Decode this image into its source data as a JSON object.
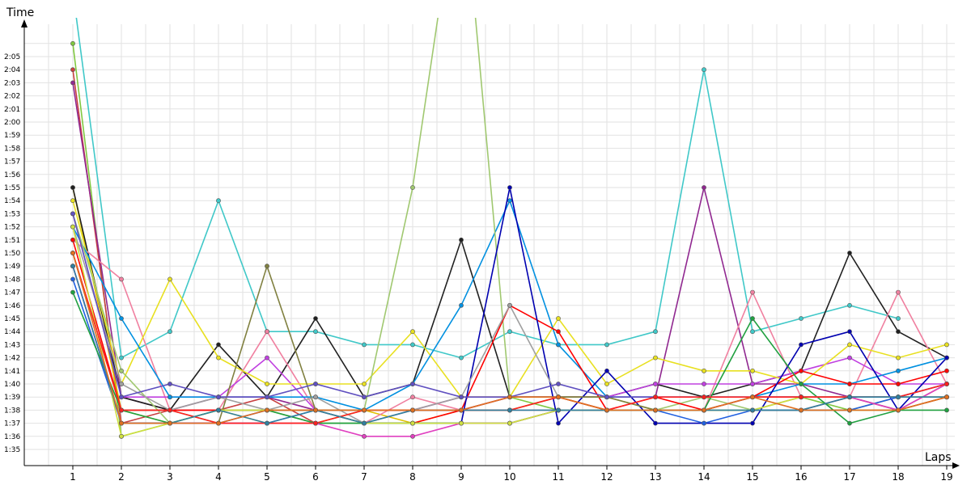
{
  "chart_data": {
    "type": "line",
    "title": "",
    "xlabel": "Laps",
    "ylabel": "Time",
    "grid": true,
    "x": [
      1,
      2,
      3,
      4,
      5,
      6,
      7,
      8,
      9,
      10,
      11,
      12,
      13,
      14,
      15,
      16,
      17,
      18,
      19
    ],
    "y_ticks": [
      "1:35",
      "1:36",
      "1:37",
      "1:38",
      "1:39",
      "1:40",
      "1:41",
      "1:42",
      "1:43",
      "1:44",
      "1:45",
      "1:46",
      "1:47",
      "1:48",
      "1:49",
      "1:50",
      "1:51",
      "1:52",
      "1:53",
      "1:54",
      "1:55",
      "1:56",
      "1:57",
      "1:58",
      "1:59",
      "2:00",
      "2:01",
      "2:02",
      "2:03",
      "2:04",
      "2:05"
    ],
    "ylim_seconds": [
      94,
      127
    ],
    "series": [
      {
        "color": "#40c8c8",
        "values": [
          130,
          102,
          104,
          114,
          104,
          104,
          103,
          103,
          102,
          104,
          103,
          103,
          104,
          124,
          104,
          105,
          106,
          105,
          null
        ]
      },
      {
        "color": "#80c840",
        "values": [
          126,
          96,
          97,
          98,
          98,
          97,
          97,
          98,
          98,
          99,
          98,
          98,
          98,
          98,
          99,
          99,
          98,
          98,
          99
        ]
      },
      {
        "color": "#c84040",
        "values": [
          124,
          97,
          98,
          98,
          99,
          97,
          98,
          98,
          98,
          99,
          99,
          98,
          98,
          98,
          98,
          98,
          99,
          98,
          99
        ]
      },
      {
        "color": "#902890",
        "values": [
          123,
          99,
          98,
          99,
          99,
          98,
          98,
          98,
          99,
          99,
          99,
          99,
          99,
          115,
          100,
          100,
          99,
          99,
          99
        ]
      },
      {
        "color": "#e0c000",
        "values": [
          115,
          98,
          97,
          98,
          97,
          97,
          98,
          97,
          98,
          98,
          99,
          99,
          98,
          98,
          98,
          98,
          98,
          99,
          99
        ]
      },
      {
        "color": "#202020",
        "values": [
          115,
          99,
          98,
          103,
          99,
          105,
          99,
          100,
          111,
          99,
          99,
          99,
          100,
          99,
          100,
          101,
          110,
          104,
          102
        ]
      },
      {
        "color": "#f080a0",
        "values": [
          111,
          108,
          98,
          98,
          104,
          98,
          97,
          99,
          98,
          98,
          98,
          98,
          98,
          98,
          107,
          99,
          99,
          107,
          100
        ]
      },
      {
        "color": "#c040e0",
        "values": [
          113,
          99,
          99,
          99,
          102,
          98,
          97,
          98,
          98,
          99,
          99,
          99,
          100,
          100,
          100,
          101,
          102,
          100,
          100
        ]
      },
      {
        "color": "#e8e020",
        "values": [
          114,
          100,
          108,
          102,
          100,
          100,
          100,
          104,
          99,
          99,
          105,
          100,
          102,
          101,
          101,
          100,
          103,
          102,
          103
        ]
      },
      {
        "color": "#0090e0",
        "values": [
          112,
          105,
          99,
          99,
          99,
          99,
          98,
          100,
          106,
          114,
          103,
          99,
          99,
          99,
          99,
          100,
          100,
          101,
          102
        ]
      },
      {
        "color": "#a0c870",
        "values": [
          113,
          101,
          97,
          98,
          98,
          97,
          98,
          115,
          140,
          99,
          99,
          99,
          98,
          99,
          98,
          99,
          99,
          99,
          99
        ]
      },
      {
        "color": "#ff0000",
        "values": [
          111,
          98,
          98,
          98,
          98,
          98,
          97,
          97,
          98,
          106,
          104,
          98,
          99,
          98,
          99,
          101,
          100,
          100,
          101
        ]
      },
      {
        "color": "#0000b0",
        "values": [
          109,
          97,
          97,
          97,
          98,
          98,
          97,
          97,
          97,
          115,
          97,
          101,
          97,
          97,
          97,
          103,
          104,
          98,
          102
        ]
      },
      {
        "color": "#2060e0",
        "values": [
          108,
          97,
          97,
          97,
          97,
          98,
          97,
          97,
          97,
          97,
          98,
          98,
          98,
          97,
          98,
          98,
          98,
          99,
          100
        ]
      },
      {
        "color": "#808040",
        "values": [
          110,
          98,
          98,
          97,
          109,
          98,
          98,
          98,
          98,
          98,
          99,
          99,
          98,
          98,
          99,
          99,
          99,
          98,
          100
        ]
      },
      {
        "color": "#20a040",
        "values": [
          107,
          98,
          97,
          98,
          98,
          97,
          97,
          97,
          97,
          97,
          98,
          98,
          98,
          98,
          105,
          100,
          97,
          98,
          98
        ]
      },
      {
        "color": "#e040c0",
        "values": [
          109,
          97,
          97,
          97,
          97,
          97,
          96,
          96,
          97,
          97,
          98,
          98,
          98,
          98,
          99,
          99,
          99,
          98,
          100
        ]
      },
      {
        "color": "#a0a0a0",
        "values": [
          112,
          100,
          98,
          99,
          98,
          99,
          97,
          98,
          99,
          106,
          99,
          98,
          98,
          98,
          98,
          99,
          99,
          99,
          99
        ]
      },
      {
        "color": "#d0e040",
        "values": [
          112,
          96,
          97,
          98,
          98,
          98,
          97,
          97,
          97,
          97,
          98,
          98,
          98,
          98,
          98,
          99,
          99,
          99,
          100
        ]
      },
      {
        "color": "#6050c0",
        "values": [
          113,
          99,
          100,
          99,
          99,
          100,
          99,
          100,
          99,
          99,
          100,
          99,
          99,
          99,
          99,
          99,
          99,
          99,
          100
        ]
      },
      {
        "color": "#ff2020",
        "values": [
          110,
          98,
          98,
          97,
          97,
          97,
          98,
          98,
          98,
          98,
          99,
          98,
          99,
          99,
          99,
          99,
          99,
          99,
          100
        ]
      },
      {
        "color": "#3080a0",
        "values": [
          109,
          97,
          97,
          98,
          97,
          98,
          97,
          98,
          98,
          98,
          98,
          98,
          98,
          98,
          98,
          98,
          99,
          99,
          99
        ]
      },
      {
        "color": "#e07020",
        "values": [
          110,
          97,
          97,
          97,
          98,
          98,
          98,
          98,
          98,
          99,
          99,
          98,
          98,
          98,
          99,
          98,
          98,
          98,
          99
        ]
      }
    ]
  }
}
